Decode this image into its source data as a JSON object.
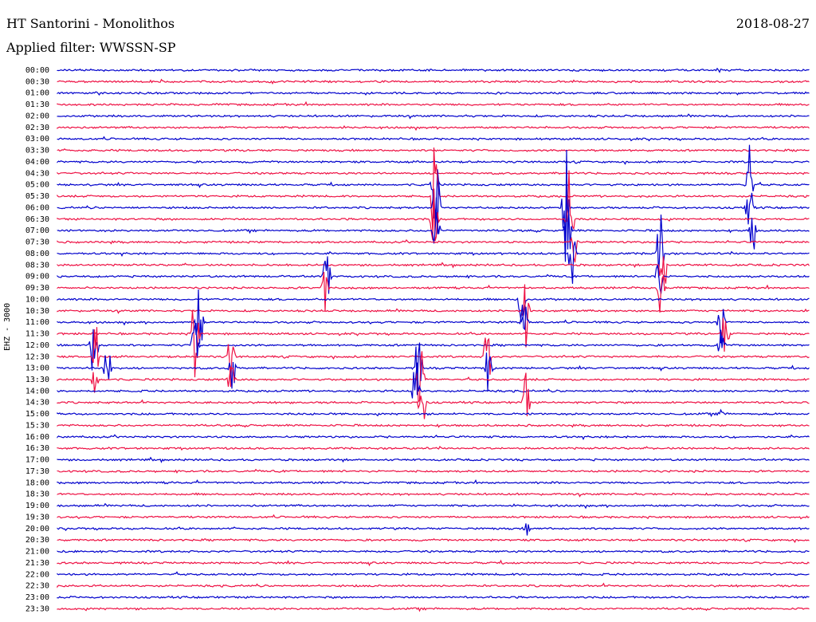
{
  "header": {
    "station": "HT Santorini - Monolithos",
    "filter": "Applied filter: WWSSN-SP",
    "date": "2018-08-27"
  },
  "channel_label": "EHZ - 3000",
  "colors": {
    "blue": "#0000cc",
    "red": "#ee1144"
  },
  "chart_data": {
    "type": "line",
    "description_type": "helicorder",
    "title": "",
    "row_labels": [
      "00:00",
      "00:30",
      "01:00",
      "01:30",
      "02:00",
      "02:30",
      "03:00",
      "03:30",
      "04:00",
      "04:30",
      "05:00",
      "05:30",
      "06:00",
      "06:30",
      "07:00",
      "07:30",
      "08:00",
      "08:30",
      "09:00",
      "09:30",
      "10:00",
      "10:30",
      "11:00",
      "11:30",
      "12:00",
      "12:30",
      "13:00",
      "13:30",
      "14:00",
      "14:30",
      "15:00",
      "15:30",
      "16:00",
      "16:30",
      "17:00",
      "17:30",
      "18:00",
      "18:30",
      "19:00",
      "19:30",
      "20:00",
      "20:30",
      "21:00",
      "21:30",
      "22:00",
      "22:30",
      "23:00",
      "23:30"
    ],
    "row_colors": [
      "blue",
      "red",
      "blue",
      "red",
      "blue",
      "red",
      "blue",
      "red",
      "blue",
      "red",
      "blue",
      "red",
      "blue",
      "red",
      "blue",
      "red",
      "blue",
      "red",
      "blue",
      "red",
      "blue",
      "red",
      "blue",
      "red",
      "blue",
      "red",
      "blue",
      "red",
      "blue",
      "red",
      "blue",
      "red",
      "blue",
      "red",
      "blue",
      "red",
      "blue",
      "red",
      "blue",
      "red",
      "blue",
      "red",
      "blue",
      "red",
      "blue",
      "red",
      "blue",
      "red"
    ]
  }
}
